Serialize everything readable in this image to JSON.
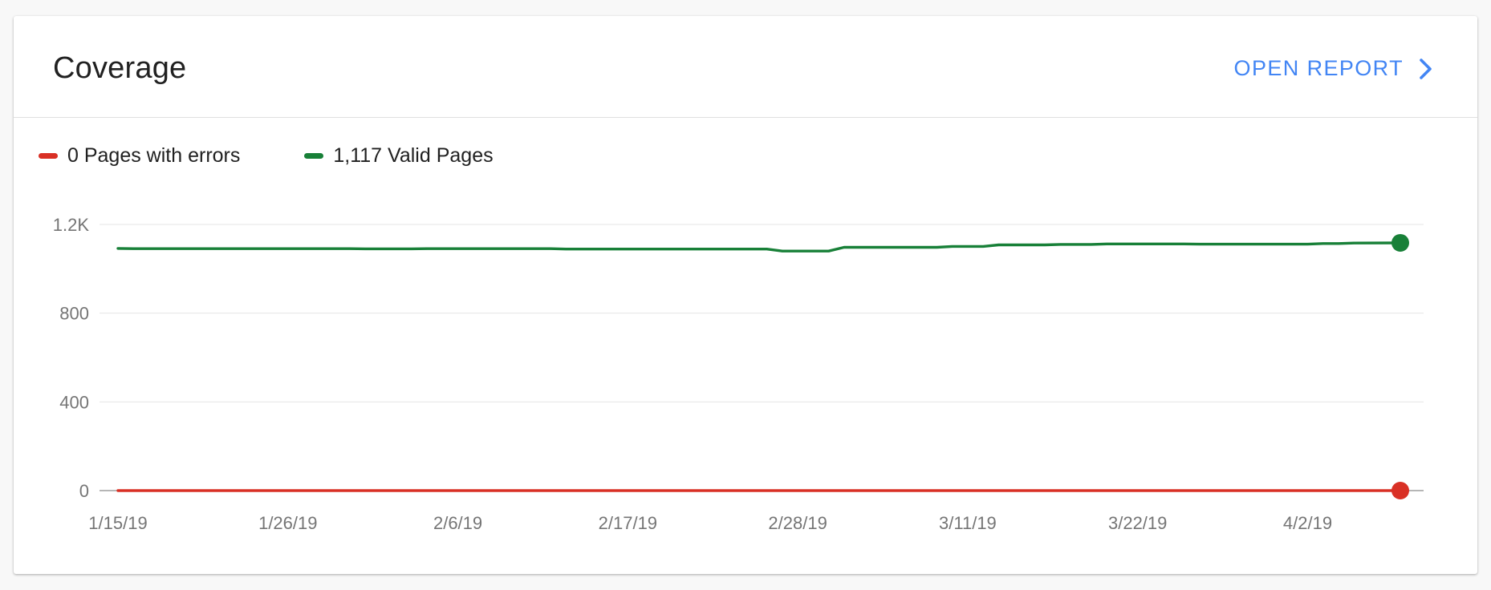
{
  "card": {
    "title": "Coverage",
    "open_report_label": "OPEN REPORT"
  },
  "legend": [
    {
      "label": "0 Pages with errors",
      "color": "#d93025"
    },
    {
      "label": "1,117 Valid Pages",
      "color": "#188038"
    }
  ],
  "chart_data": {
    "type": "line",
    "xlabel": "",
    "ylabel": "",
    "ylim": [
      0,
      1200
    ],
    "y_ticks": [
      {
        "value": 0,
        "label": "0"
      },
      {
        "value": 400,
        "label": "400"
      },
      {
        "value": 800,
        "label": "800"
      },
      {
        "value": 1200,
        "label": "1.2K"
      }
    ],
    "x_ticks": [
      "1/15/19",
      "1/26/19",
      "2/6/19",
      "2/17/19",
      "2/28/19",
      "3/11/19",
      "3/22/19",
      "4/2/19"
    ],
    "x_start": "2019-01-15",
    "x_end": "2019-04-08",
    "grid": true,
    "series": [
      {
        "name": "Valid Pages",
        "color": "#188038",
        "values": [
          [
            "2019-01-15",
            1092
          ],
          [
            "2019-01-16",
            1091
          ],
          [
            "2019-01-22",
            1091
          ],
          [
            "2019-01-30",
            1091
          ],
          [
            "2019-01-31",
            1090
          ],
          [
            "2019-02-03",
            1090
          ],
          [
            "2019-02-04",
            1091
          ],
          [
            "2019-02-12",
            1091
          ],
          [
            "2019-02-13",
            1089
          ],
          [
            "2019-02-26",
            1089
          ],
          [
            "2019-02-27",
            1080
          ],
          [
            "2019-03-02",
            1080
          ],
          [
            "2019-03-03",
            1097
          ],
          [
            "2019-03-09",
            1097
          ],
          [
            "2019-03-10",
            1101
          ],
          [
            "2019-03-12",
            1101
          ],
          [
            "2019-03-13",
            1108
          ],
          [
            "2019-03-16",
            1108
          ],
          [
            "2019-03-17",
            1110
          ],
          [
            "2019-03-19",
            1110
          ],
          [
            "2019-03-20",
            1112
          ],
          [
            "2019-03-25",
            1112
          ],
          [
            "2019-03-26",
            1111
          ],
          [
            "2019-04-02",
            1111
          ],
          [
            "2019-04-03",
            1114
          ],
          [
            "2019-04-04",
            1114
          ],
          [
            "2019-04-05",
            1116
          ],
          [
            "2019-04-08",
            1117
          ]
        ]
      },
      {
        "name": "Pages with errors",
        "color": "#d93025",
        "values": [
          [
            "2019-01-15",
            0
          ],
          [
            "2019-04-08",
            0
          ]
        ]
      }
    ]
  }
}
